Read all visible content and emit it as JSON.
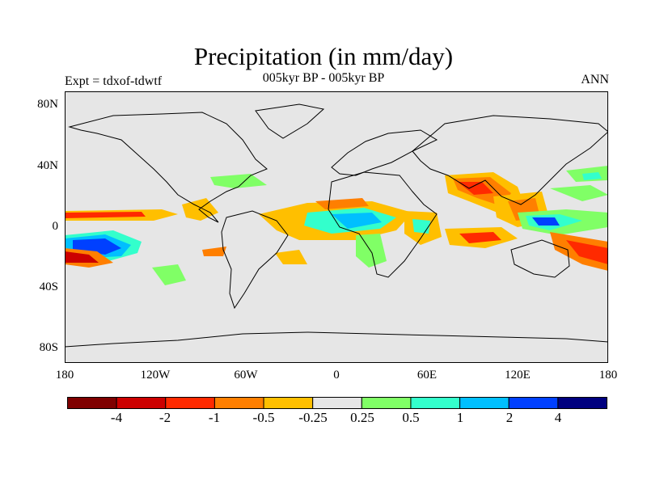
{
  "title": "Precipitation (in mm/day)",
  "subtitle_left": "Expt = tdxof-tdwtf",
  "subtitle_center": "005kyr BP - 005kyr BP",
  "subtitle_right": "ANN",
  "lat_labels": [
    "80N",
    "40N",
    "0",
    "40S",
    "80S"
  ],
  "lon_labels": [
    "180",
    "120W",
    "60W",
    "0",
    "60E",
    "120E",
    "180"
  ],
  "colorbar": {
    "colors": [
      "#7f0000",
      "#cc0000",
      "#ff2a00",
      "#ff7f00",
      "#ffbf00",
      "#e6e6e6",
      "#80ff66",
      "#33ffcc",
      "#00bfff",
      "#0040ff",
      "#00007f"
    ],
    "labels": [
      "-4",
      "-2",
      "-1",
      "-0.5",
      "-0.25",
      "0.25",
      "0.5",
      "1",
      "2",
      "4"
    ]
  },
  "map_colors": {
    "background": "#e6e6e6",
    "coast": "#000000"
  }
}
